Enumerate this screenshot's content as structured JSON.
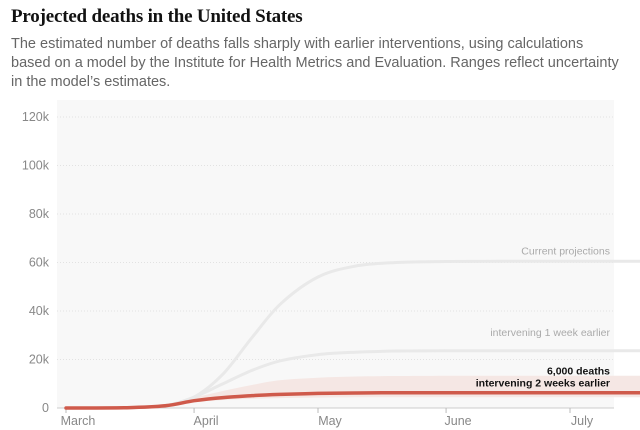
{
  "header": {
    "title": "Projected deaths in the United States",
    "subtitle": "The estimated number of deaths falls sharply with earlier interventions, using calculations based on a model by the Institute for Health Metrics and Evaluation. Ranges reflect uncertainty in the model’s estimates."
  },
  "colors": {
    "background_panel": "#f8f8f8",
    "grid": "#e2e2e2",
    "current": "#e9e9e9",
    "one_week": "#e9e9e9",
    "two_weeks": "#cf5a4b",
    "band": "#f5e7e4",
    "label_gray": "#aaaaaa",
    "label_dark": "#121212"
  },
  "chart_data": {
    "type": "line",
    "title": "Projected deaths in the United States",
    "ylim": [
      0,
      120000
    ],
    "y_ticks": [
      0,
      20000,
      40000,
      60000,
      80000,
      100000,
      120000
    ],
    "y_tick_labels": [
      "0",
      "20k",
      "40k",
      "60k",
      "80k",
      "100k",
      "120k"
    ],
    "xlim": [
      "2020-03-01",
      "2020-07-31"
    ],
    "x_ticks": [
      "2020-03-01",
      "2020-04-01",
      "2020-05-01",
      "2020-06-01",
      "2020-07-01"
    ],
    "x_tick_labels": [
      "March",
      "April",
      "May",
      "June",
      "July"
    ],
    "grid": true,
    "series": [
      {
        "name": "Current projections",
        "label_lines": [
          "Current projections"
        ],
        "x": [
          "2020-03-01",
          "2020-03-15",
          "2020-03-25",
          "2020-04-01",
          "2020-04-08",
          "2020-04-15",
          "2020-04-22",
          "2020-05-01",
          "2020-05-10",
          "2020-05-20",
          "2020-06-01",
          "2020-06-15",
          "2020-07-01",
          "2020-07-31"
        ],
        "values": [
          0,
          100,
          1000,
          4500,
          14000,
          29000,
          43000,
          54000,
          58500,
          60000,
          60400,
          60500,
          60500,
          60500
        ]
      },
      {
        "name": "intervening 1 week earlier",
        "label_lines": [
          "intervening 1 week earlier"
        ],
        "x": [
          "2020-03-01",
          "2020-03-15",
          "2020-03-25",
          "2020-04-01",
          "2020-04-08",
          "2020-04-15",
          "2020-04-22",
          "2020-05-01",
          "2020-05-10",
          "2020-05-20",
          "2020-06-01",
          "2020-06-15",
          "2020-07-01",
          "2020-07-31"
        ],
        "values": [
          0,
          100,
          1000,
          4500,
          10000,
          15500,
          19500,
          22000,
          23000,
          23500,
          23600,
          23600,
          23600,
          23600
        ]
      },
      {
        "name": "intervening 2 weeks earlier",
        "label_lines": [
          "6,000 deaths",
          "intervening 2 weeks earlier"
        ],
        "x": [
          "2020-03-01",
          "2020-03-15",
          "2020-03-25",
          "2020-04-01",
          "2020-04-08",
          "2020-04-15",
          "2020-04-22",
          "2020-05-01",
          "2020-05-10",
          "2020-05-20",
          "2020-06-01",
          "2020-06-15",
          "2020-07-01",
          "2020-07-31"
        ],
        "values": [
          0,
          100,
          900,
          3000,
          4300,
          5100,
          5600,
          6000,
          6200,
          6300,
          6300,
          6300,
          6300,
          6300
        ],
        "range_low": [
          0,
          80,
          700,
          2400,
          3300,
          3800,
          4100,
          4300,
          4400,
          4400,
          4400,
          4400,
          4400,
          4400
        ],
        "range_high": [
          0,
          130,
          1300,
          4300,
          7000,
          9500,
          11500,
          12500,
          13000,
          13200,
          13300,
          13300,
          13300,
          13300
        ]
      }
    ]
  }
}
